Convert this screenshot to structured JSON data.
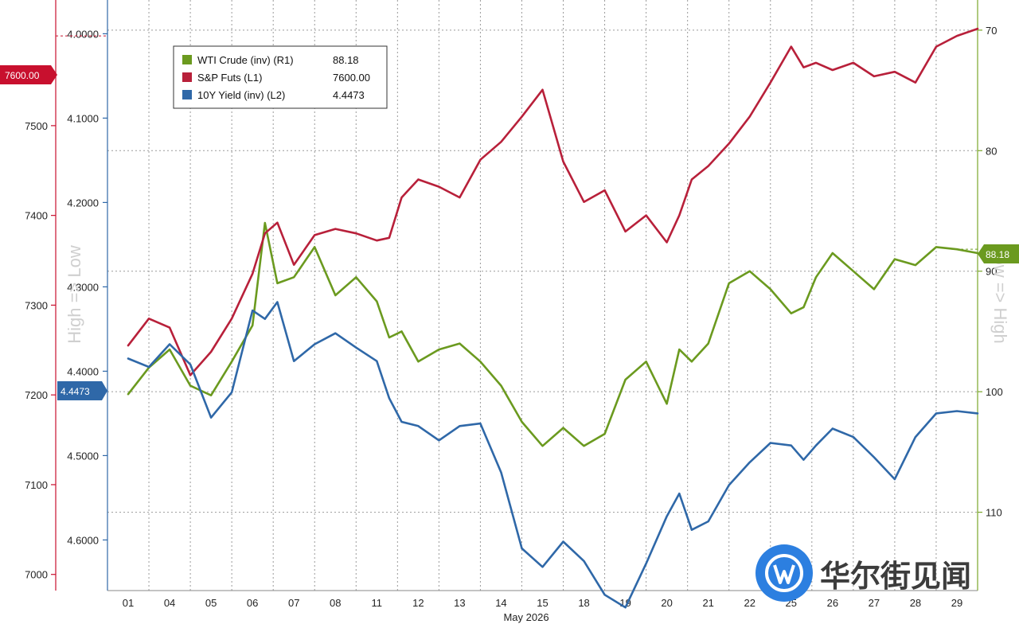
{
  "chart_data": {
    "type": "line",
    "xlabel": "May 2026",
    "x_categories": [
      "01",
      "04",
      "05",
      "06",
      "07",
      "08",
      "11",
      "12",
      "13",
      "14",
      "15",
      "18",
      "19",
      "20",
      "21",
      "22",
      "25",
      "26",
      "27",
      "28",
      "29"
    ],
    "axes": {
      "sp_axis": {
        "name": "L1",
        "ylim": [
          6982,
          7640
        ],
        "ticks": [
          7000,
          7100,
          7200,
          7300,
          7400,
          7500
        ]
      },
      "yield_axis": {
        "name": "L2",
        "inverted": true,
        "ylim": [
          3.96,
          4.66
        ],
        "ticks": [
          "4.0000",
          "4.1000",
          "4.2000",
          "4.3000",
          "4.4000",
          "4.5000",
          "4.6000"
        ]
      },
      "wti_axis": {
        "name": "R1",
        "inverted": true,
        "ylim": [
          67.5,
          116.5
        ],
        "ticks": [
          70,
          80,
          90,
          100,
          110
        ]
      }
    },
    "axis_titles": {
      "left": "High => Low",
      "right": "Low => High"
    },
    "series": [
      {
        "name": "WTI Crude (inv) (R1)",
        "last": "88.18",
        "color": "#6b9a1f",
        "axis": "wti_axis",
        "x": [
          0,
          0.5,
          1,
          1.5,
          2,
          2.5,
          3,
          3.3,
          3.6,
          4,
          4.5,
          5,
          5.5,
          6,
          6.3,
          6.6,
          7,
          7.5,
          8,
          8.5,
          9,
          9.5,
          10,
          10.5,
          11,
          11.5,
          12,
          12.5,
          13,
          13.3,
          13.6,
          14,
          14.5,
          15,
          15.5,
          16,
          16.3,
          16.6,
          17,
          17.5,
          18,
          18.5,
          19,
          19.5,
          20,
          20.5
        ],
        "values": [
          100.2,
          98.0,
          96.5,
          99.5,
          100.3,
          97.5,
          94.5,
          86.0,
          91.0,
          90.5,
          88.0,
          92.0,
          90.5,
          92.5,
          95.5,
          95.0,
          97.5,
          96.5,
          96.0,
          97.5,
          99.5,
          102.5,
          104.5,
          103.0,
          104.5,
          103.5,
          99.0,
          97.5,
          101.0,
          96.5,
          97.5,
          96.0,
          91.0,
          90.0,
          91.5,
          93.5,
          93.0,
          90.5,
          88.5,
          90.0,
          91.5,
          89.0,
          89.5,
          88.0,
          88.18,
          88.5
        ]
      },
      {
        "name": "S&P Futs (L1)",
        "last": "7600.00",
        "color": "#b8203a",
        "axis": "sp_axis",
        "x": [
          0,
          0.5,
          1,
          1.5,
          2,
          2.5,
          3,
          3.3,
          3.6,
          4,
          4.5,
          5,
          5.5,
          6,
          6.3,
          6.6,
          7,
          7.5,
          8,
          8.5,
          9,
          9.5,
          10,
          10.5,
          11,
          11.5,
          12,
          12.5,
          13,
          13.3,
          13.6,
          14,
          14.5,
          15,
          15.5,
          16,
          16.3,
          16.6,
          17,
          17.5,
          18,
          18.5,
          19,
          19.5,
          20,
          20.5
        ],
        "values": [
          7255,
          7285,
          7275,
          7222,
          7248,
          7285,
          7335,
          7380,
          7392,
          7345,
          7378,
          7385,
          7380,
          7372,
          7375,
          7420,
          7440,
          7432,
          7420,
          7462,
          7482,
          7510,
          7540,
          7460,
          7415,
          7428,
          7382,
          7400,
          7370,
          7400,
          7440,
          7455,
          7480,
          7510,
          7548,
          7588,
          7565,
          7570,
          7562,
          7570,
          7555,
          7560,
          7548,
          7588,
          7600,
          7608
        ]
      },
      {
        "name": "10Y Yield (inv) (L2)",
        "last": "4.4473",
        "color": "#2f68a8",
        "axis": "yield_axis",
        "x": [
          0,
          0.5,
          1,
          1.5,
          2,
          2.5,
          3,
          3.3,
          3.6,
          4,
          4.5,
          5,
          5.5,
          6,
          6.3,
          6.6,
          7,
          7.5,
          8,
          8.5,
          9,
          9.5,
          10,
          10.5,
          11,
          11.5,
          12,
          12.5,
          13,
          13.3,
          13.6,
          14,
          14.5,
          15,
          15.5,
          16,
          16.3,
          16.6,
          17,
          17.5,
          18,
          18.5,
          19,
          19.5,
          20,
          20.5
        ],
        "values": [
          4.385,
          4.395,
          4.368,
          4.392,
          4.455,
          4.425,
          4.328,
          4.338,
          4.318,
          4.388,
          4.368,
          4.355,
          4.372,
          4.388,
          4.432,
          4.46,
          4.465,
          4.482,
          4.465,
          4.462,
          4.52,
          4.61,
          4.632,
          4.602,
          4.625,
          4.665,
          4.68,
          4.628,
          4.572,
          4.545,
          4.588,
          4.578,
          4.535,
          4.508,
          4.485,
          4.488,
          4.505,
          4.488,
          4.468,
          4.478,
          4.502,
          4.528,
          4.478,
          4.45,
          4.4473,
          4.45
        ]
      }
    ],
    "reference_lines": {
      "sp_axis": 7600,
      "wti_axis": 88.18
    },
    "grid": true,
    "legend": {
      "position": "top-left"
    }
  },
  "watermark": {
    "text": "华尔街见闻"
  }
}
